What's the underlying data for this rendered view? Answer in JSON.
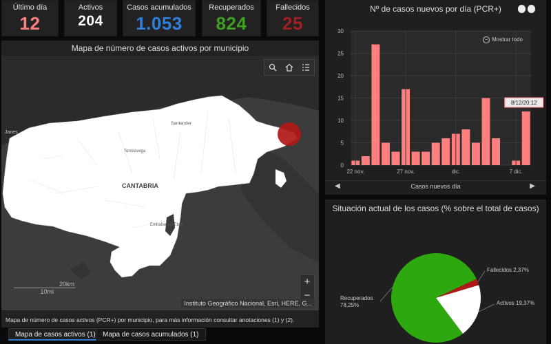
{
  "stats": [
    {
      "label": "Último día",
      "value": "12",
      "color": "#ff7f7f"
    },
    {
      "label": "Activos",
      "value": "204",
      "color": "#ffffff"
    },
    {
      "label": "Casos acumulados",
      "value": "1.053",
      "color": "#2f7fdc"
    },
    {
      "label": "Recuperados",
      "value": "824",
      "color": "#3da11f"
    },
    {
      "label": "Fallecidos",
      "value": "25",
      "color": "#a21f22"
    }
  ],
  "map": {
    "title": "Mapa de número de casos activos por municipio",
    "region_label": "CANTABRIA",
    "place_labels": [
      "Santander",
      "Torrelavega",
      "Embalse del Ebro",
      "Janes"
    ],
    "attribution": "Instituto Geográfico Nacional, Esri, HERE, G...",
    "scale_km": "20km",
    "scale_mi": "10mi",
    "zoom_in": "+",
    "zoom_out": "−",
    "caption": "Mapa de número de casos activos (PCR+) por municipio, para más información consultar anotaciones (1) y (2)."
  },
  "tabs": [
    {
      "label": "Mapa de casos activos (1)",
      "active": true
    },
    {
      "label": "Mapa de casos acumulados (1)",
      "active": false
    }
  ],
  "bar_panel": {
    "title": "Nº de casos nuevos por día (PCR+)",
    "zoom_all": "Mostrar todo",
    "footer": "Casos nuevos día",
    "tooltip": "8/12/20:12"
  },
  "pie_panel": {
    "title": "Situación actual de los casos (% sobre el total de casos)"
  },
  "chart_data": [
    {
      "type": "bar",
      "title": "Nº de casos nuevos por día (PCR+)",
      "xlabel": "Casos nuevos día",
      "ylabel": "",
      "ylim": [
        0,
        30
      ],
      "yticks": [
        0,
        5,
        10,
        15,
        20,
        25,
        30
      ],
      "x_tick_labels": [
        {
          "label": "22 nov.",
          "index": 0
        },
        {
          "label": "27 nov.",
          "index": 5
        },
        {
          "label": "dic.",
          "index": 10
        },
        {
          "label": "7 dic.",
          "index": 16
        }
      ],
      "values": [
        1,
        2,
        27,
        5,
        3,
        17,
        3,
        3,
        5,
        6,
        7,
        8,
        5,
        15,
        6,
        0,
        1,
        12
      ],
      "bar_color": "#ff7f7f",
      "grid": true
    },
    {
      "type": "pie",
      "title": "Situación actual de los casos (% sobre el total de casos)",
      "slices": [
        {
          "label": "Recuperados",
          "value": 78.25,
          "display": "Recuperados\n78,25%",
          "color": "#2ea80f"
        },
        {
          "label": "Fallecidos",
          "value": 2.37,
          "display": "Fallecidos 2,37%",
          "color": "#b01818"
        },
        {
          "label": "Activos",
          "value": 19.37,
          "display": "Activos 19,37%",
          "color": "#ffffff"
        }
      ]
    }
  ]
}
